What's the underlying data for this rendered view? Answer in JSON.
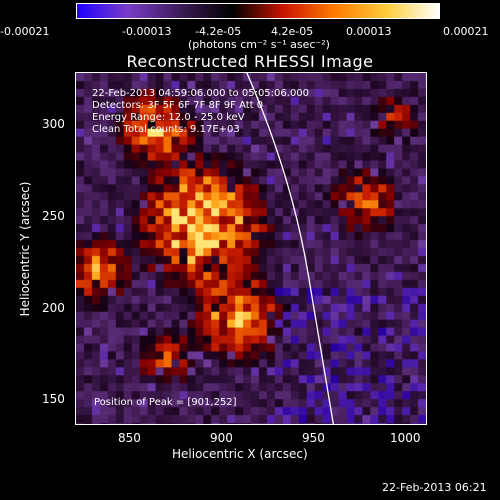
{
  "colorbar": {
    "ticks": [
      "-0.00021",
      "-0.00013",
      "-4.2e-05",
      "4.2e-05",
      "0.00013",
      "0.00021"
    ],
    "unit_label": "(photons cm⁻² s⁻¹ asec⁻²)",
    "colors": [
      "#1d00ff",
      "#7a3cc8",
      "#3a1a55",
      "#000000",
      "#c81400",
      "#ff7a00",
      "#ffd040",
      "#ffffff"
    ]
  },
  "title": "Reconstructed RHESSI Image",
  "annotations": {
    "time_range": "22-Feb-2013 04:59:06.000 to 05:05:06.000",
    "detectors": "Detectors: 3F 5F 6F 7F 8F 9F  Att 0",
    "energy": "Energy Range: 12.0 - 25.0 keV",
    "method": "Clean     Total counts: 9.17E+03",
    "peak": "Position of Peak = [901,252]"
  },
  "axes": {
    "xlabel": "Heliocentric X (arcsec)",
    "ylabel": "Heliocentric Y (arcsec)",
    "xticks": [
      "850",
      "900",
      "950",
      "1000"
    ],
    "yticks": [
      "300",
      "250",
      "200",
      "150"
    ],
    "xrange": [
      820,
      1010
    ],
    "yrange": [
      135,
      325
    ]
  },
  "footer": {
    "timestamp": "22-Feb-2013 06:21"
  }
}
